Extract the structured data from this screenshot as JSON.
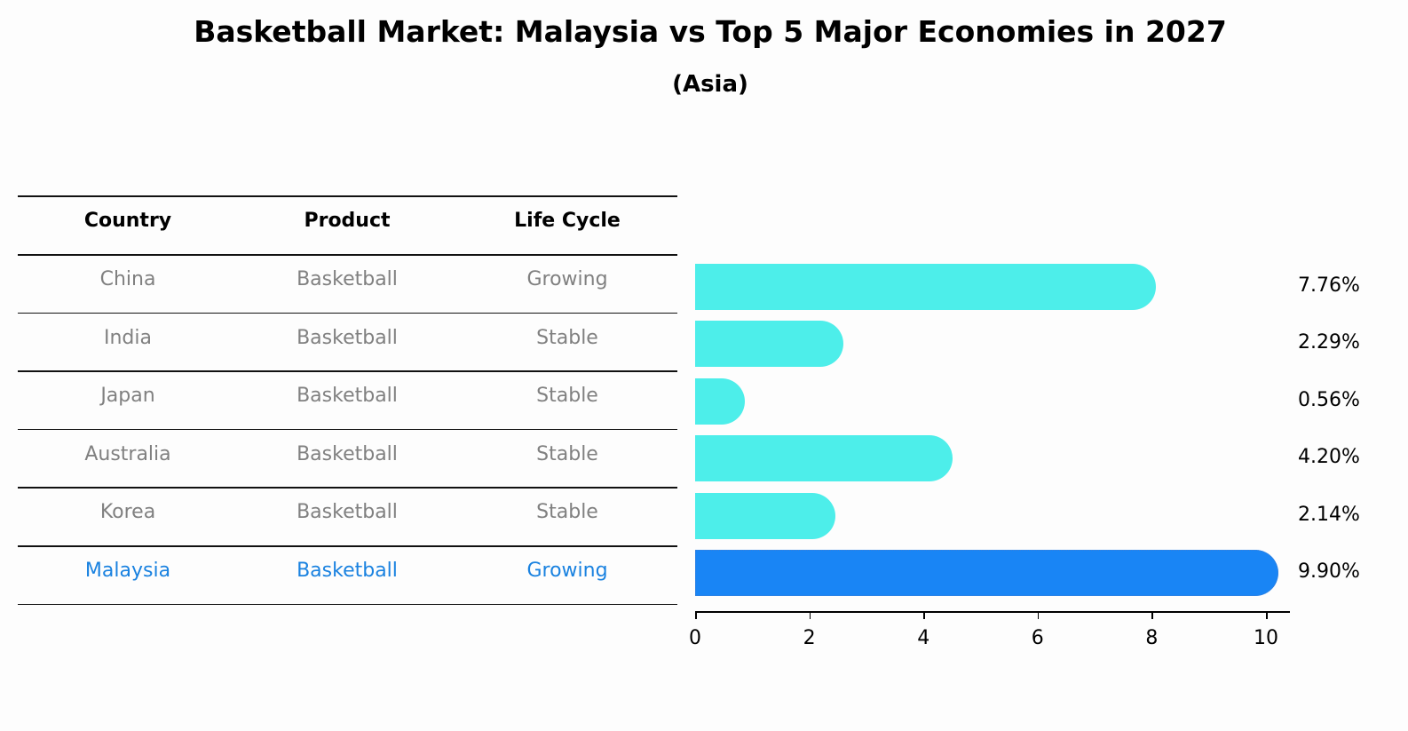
{
  "title": "Basketball Market: Malaysia vs Top 5 Major Economies in 2027",
  "subtitle": "(Asia)",
  "colors": {
    "normal_bar": "#4deeea",
    "highlight_bar": "#1985f5",
    "highlight_text": "#1a82e0",
    "normal_text": "#808080"
  },
  "table": {
    "headers": [
      "Country",
      "Product",
      "Life Cycle"
    ],
    "rows": [
      {
        "country": "China",
        "product": "Basketball",
        "life_cycle": "Growing",
        "value": 7.76,
        "label": "7.76%",
        "highlight": false
      },
      {
        "country": "India",
        "product": "Basketball",
        "life_cycle": "Stable",
        "value": 2.29,
        "label": "2.29%",
        "highlight": false
      },
      {
        "country": "Japan",
        "product": "Basketball",
        "life_cycle": "Stable",
        "value": 0.56,
        "label": "0.56%",
        "highlight": false
      },
      {
        "country": "Australia",
        "product": "Basketball",
        "life_cycle": "Stable",
        "value": 4.2,
        "label": "4.20%",
        "highlight": false
      },
      {
        "country": "Korea",
        "product": "Basketball",
        "life_cycle": "Stable",
        "value": 2.14,
        "label": "2.14%",
        "highlight": false
      },
      {
        "country": "Malaysia",
        "product": "Basketball",
        "life_cycle": "Growing",
        "value": 9.9,
        "label": "9.90%",
        "highlight": true
      }
    ]
  },
  "axis": {
    "ticks": [
      "0",
      "2",
      "4",
      "6",
      "8",
      "10"
    ]
  },
  "chart_data": {
    "type": "bar",
    "orientation": "horizontal",
    "title": "Basketball Market: Malaysia vs Top 5 Major Economies in 2027",
    "subtitle": "(Asia)",
    "categories": [
      "China",
      "India",
      "Japan",
      "Australia",
      "Korea",
      "Malaysia"
    ],
    "values": [
      7.76,
      2.29,
      0.56,
      4.2,
      2.14,
      9.9
    ],
    "value_labels": [
      "7.76%",
      "2.29%",
      "0.56%",
      "4.20%",
      "2.14%",
      "9.90%"
    ],
    "table_columns": [
      "Country",
      "Product",
      "Life Cycle"
    ],
    "product": [
      "Basketball",
      "Basketball",
      "Basketball",
      "Basketball",
      "Basketball",
      "Basketball"
    ],
    "life_cycle": [
      "Growing",
      "Stable",
      "Stable",
      "Stable",
      "Stable",
      "Growing"
    ],
    "highlight": "Malaysia",
    "xlabel": "",
    "ylabel": "",
    "xlim": [
      0,
      10.4
    ],
    "xticks": [
      0,
      2,
      4,
      6,
      8,
      10
    ],
    "grid": false,
    "legend": null
  }
}
